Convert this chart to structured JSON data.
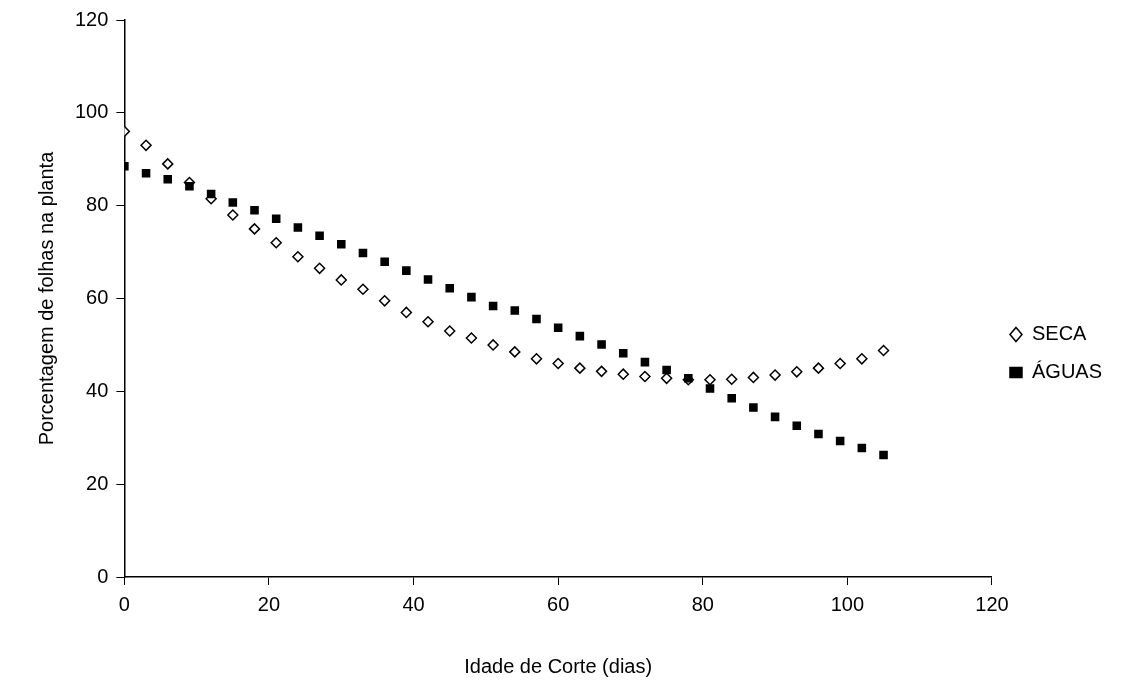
{
  "chart_data": {
    "type": "scatter",
    "xlabel": "Idade de Corte (dias)",
    "ylabel": "Porcentagem de folhas na planta",
    "x": [
      0,
      3,
      6,
      9,
      12,
      15,
      18,
      21,
      24,
      27,
      30,
      33,
      36,
      39,
      42,
      45,
      48,
      51,
      54,
      57,
      60,
      63,
      66,
      69,
      72,
      75,
      78,
      81,
      84,
      87,
      90,
      93,
      96,
      99,
      102,
      105
    ],
    "series": [
      {
        "name": "SECA",
        "color": "#000000",
        "marker": "diamond",
        "values": [
          96,
          93,
          89,
          85,
          81.5,
          78,
          75,
          72,
          69,
          66.5,
          64,
          62,
          59.5,
          57,
          55,
          53,
          51.5,
          50,
          48.5,
          47,
          46,
          45,
          44.3,
          43.7,
          43.2,
          42.8,
          42.5,
          42.5,
          42.6,
          43,
          43.5,
          44.2,
          45,
          46,
          47,
          48.8
        ]
      },
      {
        "name": "ÁGUAS",
        "color": "#000000",
        "marker": "square",
        "values": [
          88.5,
          87,
          85.7,
          84.2,
          82.5,
          80.7,
          79,
          77.2,
          75.3,
          73.5,
          71.7,
          69.8,
          67.9,
          66,
          64.1,
          62.2,
          60.3,
          58.4,
          57.4,
          55.6,
          53.7,
          51.9,
          50.1,
          48.2,
          46.3,
          44.6,
          42.8,
          40.6,
          38.5,
          36.5,
          34.5,
          32.6,
          30.8,
          29.3,
          27.8,
          26.3
        ]
      }
    ],
    "xlim": [
      0,
      120
    ],
    "xticks": [
      0,
      20,
      40,
      60,
      80,
      100,
      120
    ],
    "ylim": [
      0,
      120
    ],
    "yticks": [
      0,
      20,
      40,
      60,
      80,
      100,
      120
    ],
    "legend": "right"
  }
}
